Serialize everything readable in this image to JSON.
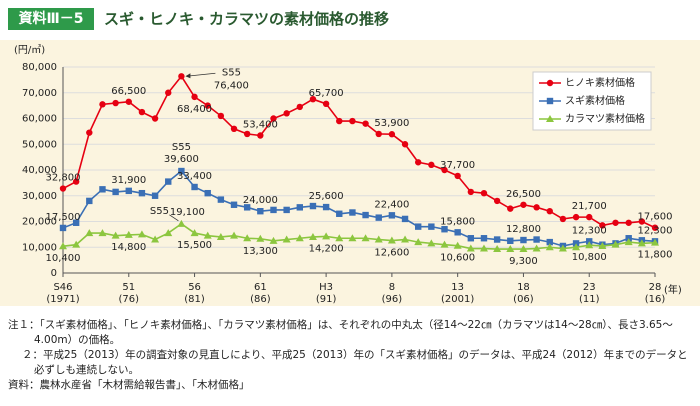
{
  "header": {
    "badge": "資料Ⅲ－5",
    "title": "スギ・ヒノキ・カラマツの素材価格の推移"
  },
  "chart_data": {
    "type": "line",
    "y_unit": "(円/㎥)",
    "x_unit": "(年)",
    "x": [
      1971,
      1972,
      1973,
      1974,
      1975,
      1976,
      1977,
      1978,
      1979,
      1980,
      1981,
      1982,
      1983,
      1984,
      1985,
      1986,
      1987,
      1988,
      1989,
      1990,
      1991,
      1992,
      1993,
      1994,
      1995,
      1996,
      1997,
      1998,
      1999,
      2000,
      2001,
      2002,
      2003,
      2004,
      2005,
      2006,
      2007,
      2008,
      2009,
      2010,
      2011,
      2012,
      2013,
      2014,
      2015,
      2016
    ],
    "xlim": [
      1971,
      2016
    ],
    "xticks": [
      {
        "value": 1971,
        "label": "S46",
        "sublabel": "(1971)"
      },
      {
        "value": 1976,
        "label": "51",
        "sublabel": "(76)"
      },
      {
        "value": 1981,
        "label": "56",
        "sublabel": "(81)"
      },
      {
        "value": 1986,
        "label": "61",
        "sublabel": "(86)"
      },
      {
        "value": 1991,
        "label": "H3",
        "sublabel": "(91)"
      },
      {
        "value": 1996,
        "label": "8",
        "sublabel": "(96)"
      },
      {
        "value": 2001,
        "label": "13",
        "sublabel": "(2001)"
      },
      {
        "value": 2006,
        "label": "18",
        "sublabel": "(06)"
      },
      {
        "value": 2011,
        "label": "23",
        "sublabel": "(11)"
      },
      {
        "value": 2016,
        "label": "28",
        "sublabel": "(16)"
      }
    ],
    "ylim": [
      0,
      80000
    ],
    "yticks": [
      0,
      {
        "value": 10000,
        "label": "10,000"
      },
      {
        "value": 20000,
        "label": "20,000"
      },
      {
        "value": 30000,
        "label": "30,000"
      },
      {
        "value": 40000,
        "label": "40,000"
      },
      {
        "value": 50000,
        "label": "50,000"
      },
      {
        "value": 60000,
        "label": "60,000"
      },
      {
        "value": 70000,
        "label": "70,000"
      },
      {
        "value": 80000,
        "label": "80,000"
      }
    ],
    "grid": true,
    "legend": "upper right",
    "series": [
      {
        "name": "ヒノキ素材価格",
        "color": "#e60012",
        "marker": "circle",
        "values": [
          32800,
          35500,
          54500,
          65500,
          66000,
          66500,
          62500,
          60000,
          70000,
          76400,
          68400,
          65000,
          61000,
          56000,
          54000,
          53400,
          60000,
          62000,
          64500,
          67500,
          65700,
          59000,
          59000,
          58000,
          54000,
          53900,
          50000,
          43000,
          42000,
          40000,
          37700,
          31500,
          31000,
          28000,
          25000,
          26500,
          25500,
          24000,
          21000,
          21700,
          21700,
          18500,
          19500,
          19500,
          20000,
          17600
        ],
        "value_labels": [
          "32,800",
          null,
          null,
          null,
          null,
          "66,500",
          null,
          null,
          null,
          "76,400",
          "68,400",
          null,
          null,
          null,
          null,
          "53,400",
          null,
          null,
          null,
          null,
          "65,700",
          null,
          null,
          null,
          null,
          "53,900",
          null,
          null,
          null,
          null,
          "37,700",
          null,
          null,
          null,
          null,
          "26,500",
          null,
          null,
          null,
          null,
          "21,700",
          null,
          null,
          null,
          null,
          "17,600"
        ],
        "annotation": {
          "x": 1980,
          "text": "S55"
        }
      },
      {
        "name": "スギ素材価格",
        "color": "#3a6fb5",
        "marker": "square",
        "values": [
          17500,
          19500,
          28000,
          32500,
          31500,
          31900,
          31000,
          30000,
          35500,
          39600,
          33400,
          31000,
          28500,
          26500,
          25500,
          24000,
          24500,
          24500,
          25500,
          26000,
          25600,
          23000,
          23500,
          22500,
          21500,
          22400,
          21000,
          18000,
          18000,
          17000,
          15800,
          13500,
          13500,
          13000,
          12500,
          12800,
          13000,
          12000,
          10500,
          11500,
          12300,
          11000,
          11500,
          13500,
          12700,
          12300
        ],
        "value_labels": [
          "17,500",
          null,
          null,
          null,
          null,
          "31,900",
          null,
          null,
          null,
          "39,600",
          "33,400",
          null,
          null,
          null,
          null,
          "24,000",
          null,
          null,
          null,
          null,
          "25,600",
          null,
          null,
          null,
          null,
          "22,400",
          null,
          null,
          null,
          null,
          "15,800",
          null,
          null,
          null,
          null,
          "12,800",
          null,
          null,
          null,
          null,
          "12,300",
          null,
          null,
          null,
          null,
          "12,300"
        ],
        "annotation": {
          "x": 1980,
          "text": "S55"
        }
      },
      {
        "name": "カラマツ素材価格",
        "color": "#8cc63f",
        "marker": "triangle",
        "values": [
          10400,
          11000,
          15500,
          15500,
          14500,
          14800,
          15000,
          13000,
          15500,
          19100,
          15500,
          14500,
          14000,
          14500,
          13500,
          13300,
          12500,
          13000,
          13500,
          14000,
          14200,
          13500,
          13500,
          13500,
          13000,
          12600,
          13000,
          12000,
          11500,
          11000,
          10600,
          9500,
          9500,
          9300,
          9300,
          9300,
          9500,
          10000,
          9500,
          10000,
          10800,
          10500,
          11000,
          12000,
          11500,
          11800
        ],
        "value_labels": [
          "10,400",
          null,
          null,
          null,
          null,
          "14,800",
          null,
          null,
          null,
          "19,100",
          "15,500",
          null,
          null,
          null,
          null,
          "13,300",
          null,
          null,
          null,
          null,
          "14,200",
          null,
          null,
          null,
          null,
          "12,600",
          null,
          null,
          null,
          null,
          "10,600",
          null,
          null,
          null,
          null,
          "9,300",
          null,
          null,
          null,
          null,
          "10,800",
          null,
          null,
          null,
          null,
          "11,800"
        ],
        "annotation": {
          "x": 1980,
          "text": "S55"
        }
      }
    ]
  },
  "notes": [
    "注１：「スギ素材価格」、「ヒノキ素材価格」、「カラマツ素材価格」は、それぞれの中丸太（径14～22㎝（カラマツは14～28㎝）、長さ3.65～4.00m）の価格。",
    "２：平成25（2013）年の調査対象の見直しにより、平成25（2013）年の「スギ素材価格」のデータは、平成24（2012）年までのデータと必ずしも連続しない。",
    "資料：農林水産省「木材需給報告書」、「木材価格」"
  ]
}
